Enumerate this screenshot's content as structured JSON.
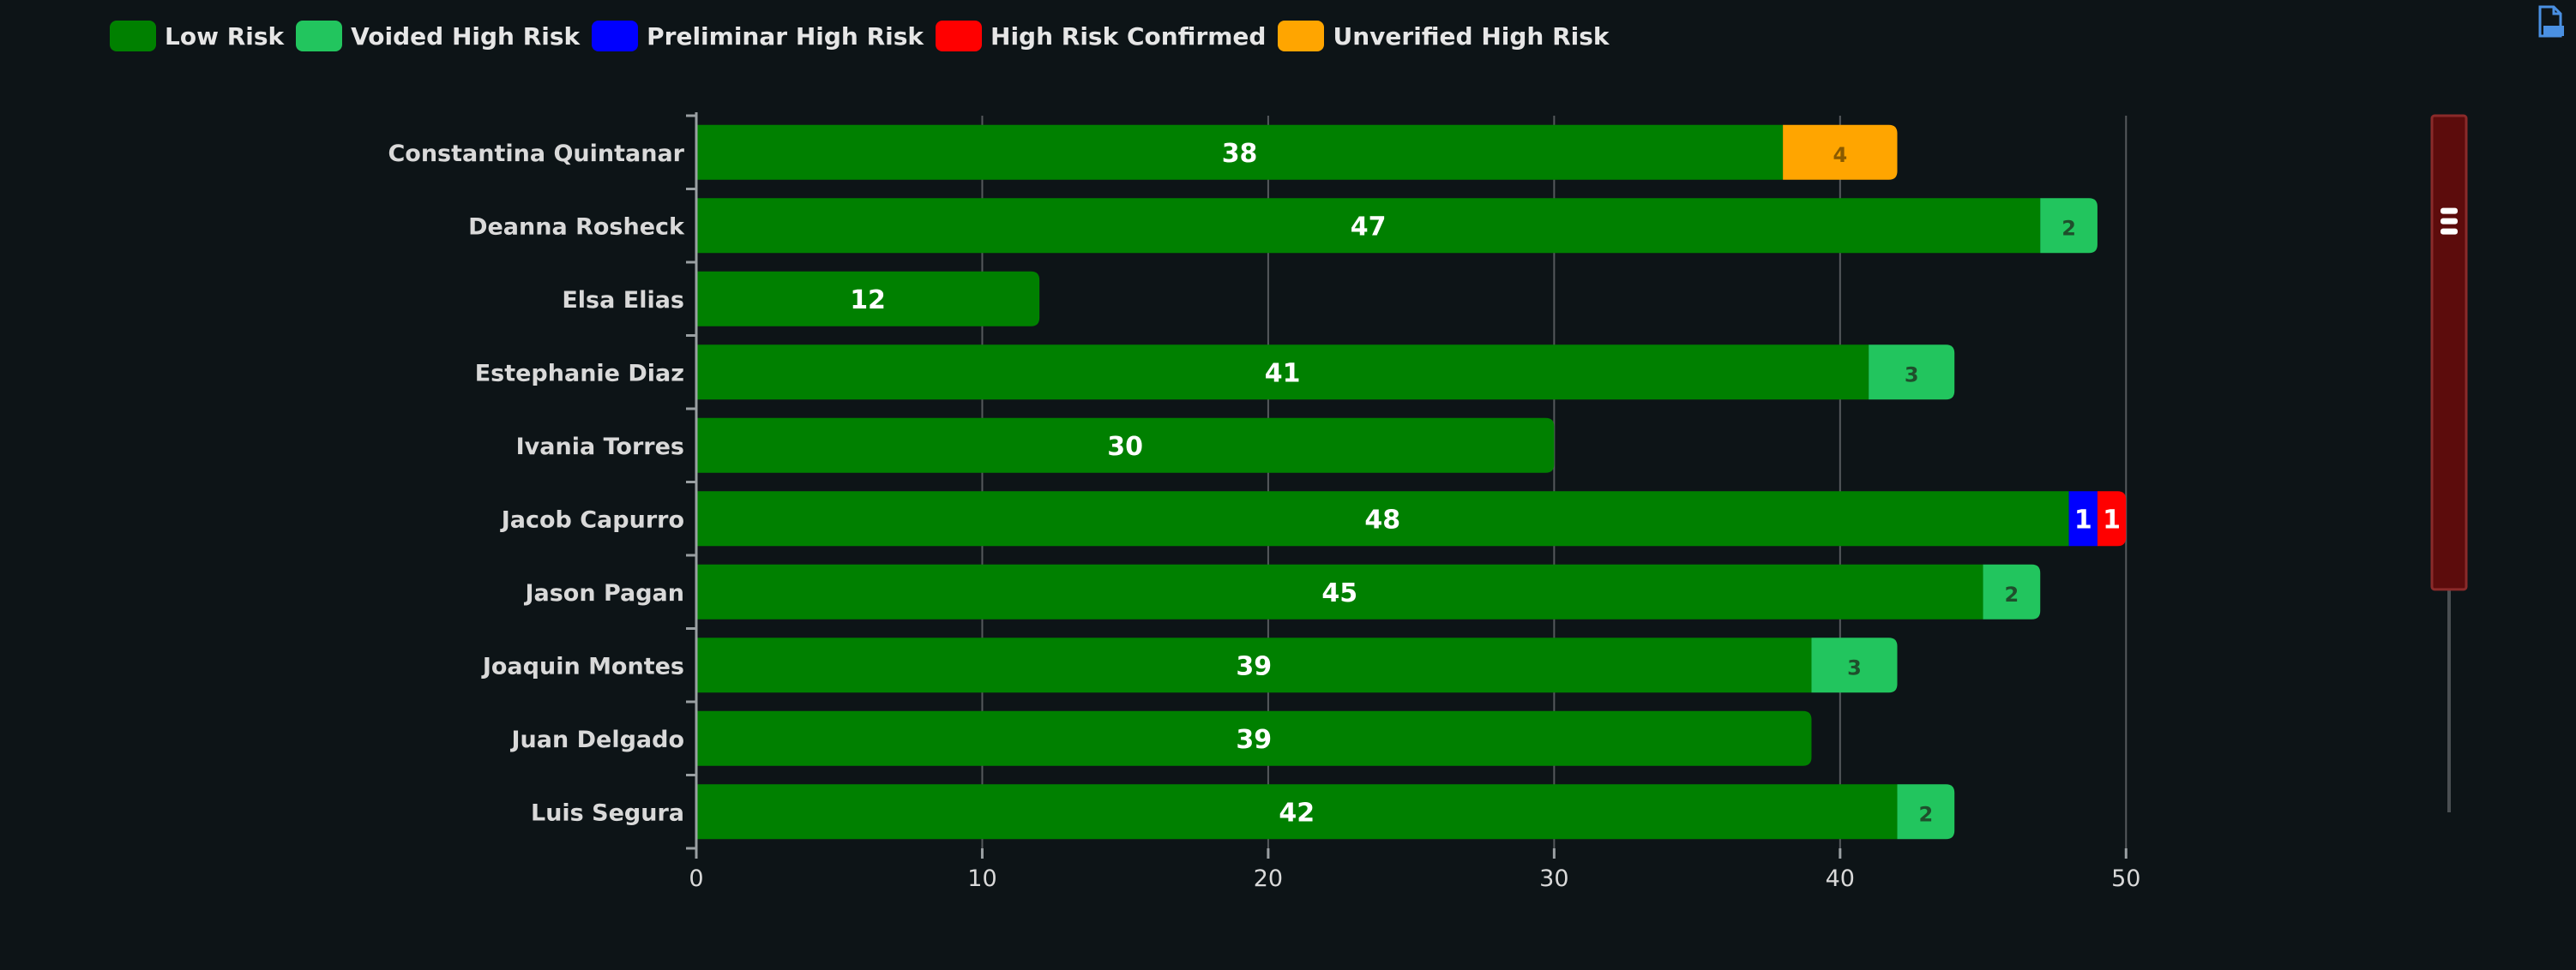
{
  "chart_data": {
    "type": "bar",
    "orientation": "horizontal",
    "stacked": true,
    "categories": [
      "Constantina Quintanar",
      "Deanna Rosheck",
      "Elsa Elias",
      "Estephanie Diaz",
      "Ivania Torres",
      "Jacob Capurro",
      "Jason Pagan",
      "Joaquin Montes",
      "Juan Delgado",
      "Luis Segura"
    ],
    "series": [
      {
        "name": "Low Risk",
        "color": "#008000",
        "values": [
          38,
          47,
          12,
          41,
          30,
          48,
          45,
          39,
          39,
          42
        ]
      },
      {
        "name": "Voided High Risk",
        "color": "#22c55e",
        "values": [
          0,
          2,
          0,
          3,
          0,
          0,
          2,
          3,
          0,
          2
        ]
      },
      {
        "name": "Preliminar High Risk",
        "color": "#0000ff",
        "values": [
          0,
          0,
          0,
          0,
          0,
          1,
          0,
          0,
          0,
          0
        ]
      },
      {
        "name": "High Risk Confirmed",
        "color": "#ff0000",
        "values": [
          0,
          0,
          0,
          0,
          0,
          1,
          0,
          0,
          0,
          0
        ]
      },
      {
        "name": "Unverified High Risk",
        "color": "#ffa500",
        "values": [
          4,
          0,
          0,
          0,
          0,
          0,
          0,
          0,
          0,
          0
        ]
      }
    ],
    "xticks": [
      "0",
      "10",
      "20",
      "30",
      "40",
      "50"
    ],
    "xlim": [
      0,
      55
    ],
    "grid": true,
    "legend_position": "top-left",
    "scrollbar": {
      "visible_fraction": 0.68,
      "offset_fraction": 0
    }
  },
  "toolbar": {
    "export_icon": "document-export-icon"
  }
}
